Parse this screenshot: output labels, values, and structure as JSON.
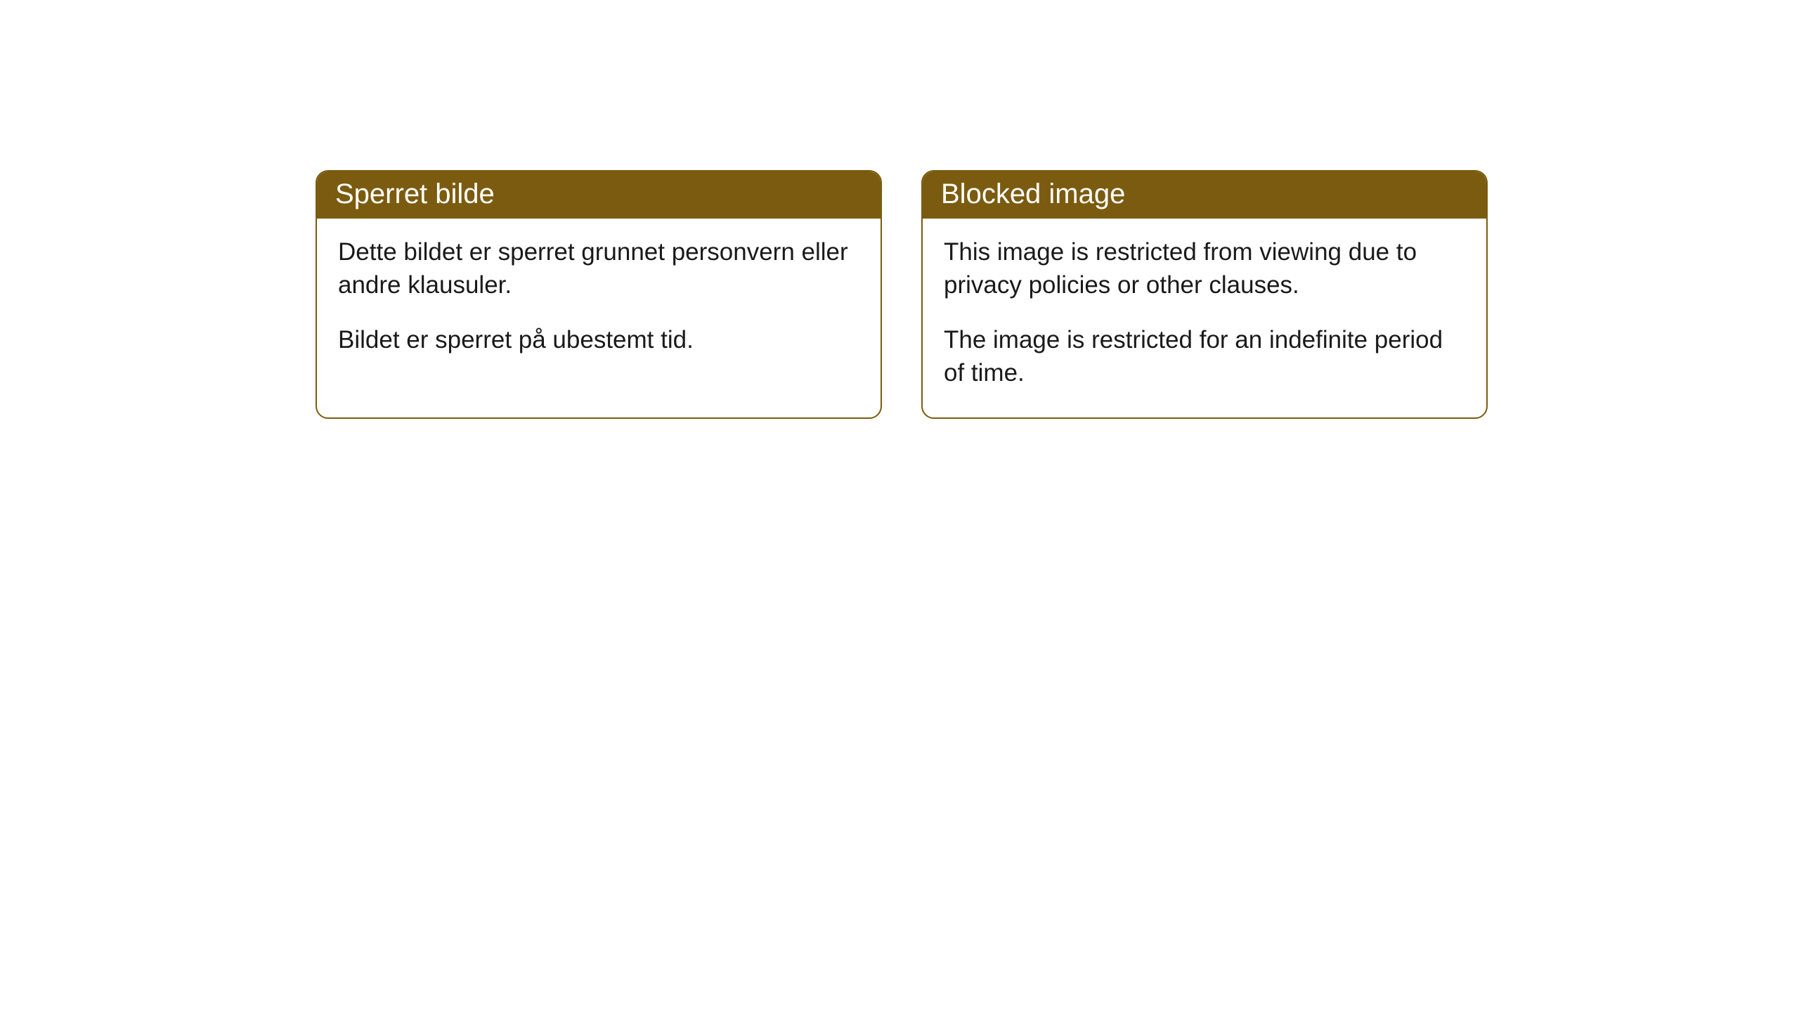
{
  "cards": [
    {
      "title": "Sperret bilde",
      "paragraph1": "Dette bildet er sperret grunnet personvern eller andre klausuler.",
      "paragraph2": "Bildet er sperret på ubestemt tid."
    },
    {
      "title": "Blocked image",
      "paragraph1": "This image is restricted from viewing due to privacy policies or other clauses.",
      "paragraph2": "The image is restricted for an indefinite period of time."
    }
  ],
  "styling": {
    "header_background": "#7b5b0f",
    "header_text_color": "#ffffff",
    "border_color": "#7b5b0f",
    "body_background": "#ffffff",
    "body_text_color": "#1a1a1a",
    "border_radius": 18,
    "header_fontsize": 40,
    "body_fontsize": 35
  }
}
